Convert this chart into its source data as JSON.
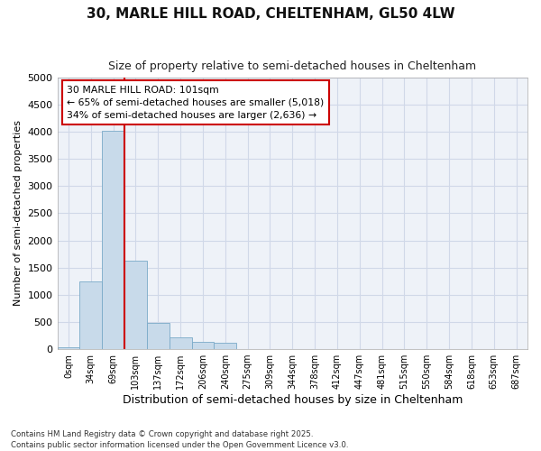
{
  "title_line1": "30, MARLE HILL ROAD, CHELTENHAM, GL50 4LW",
  "title_line2": "Size of property relative to semi-detached houses in Cheltenham",
  "xlabel": "Distribution of semi-detached houses by size in Cheltenham",
  "ylabel": "Number of semi-detached properties",
  "bar_color": "#c8daea",
  "bar_edge_color": "#7aaac8",
  "vline_color": "#cc0000",
  "vline_x_index": 3,
  "annotation_text": "30 MARLE HILL ROAD: 101sqm\n← 65% of semi-detached houses are smaller (5,018)\n34% of semi-detached houses are larger (2,636) →",
  "annotation_box_edgecolor": "#cc0000",
  "categories": [
    "0sqm",
    "34sqm",
    "69sqm",
    "103sqm",
    "137sqm",
    "172sqm",
    "206sqm",
    "240sqm",
    "275sqm",
    "309sqm",
    "344sqm",
    "378sqm",
    "412sqm",
    "447sqm",
    "481sqm",
    "515sqm",
    "550sqm",
    "584sqm",
    "618sqm",
    "653sqm",
    "687sqm"
  ],
  "values": [
    30,
    1250,
    4020,
    1620,
    480,
    210,
    130,
    110,
    0,
    0,
    0,
    0,
    0,
    0,
    0,
    0,
    0,
    0,
    0,
    0,
    0
  ],
  "ylim": [
    0,
    5000
  ],
  "yticks": [
    0,
    500,
    1000,
    1500,
    2000,
    2500,
    3000,
    3500,
    4000,
    4500,
    5000
  ],
  "background_color": "#ffffff",
  "plot_bg_color": "#eef2f8",
  "grid_color": "#d0d8e8",
  "footnote": "Contains HM Land Registry data © Crown copyright and database right 2025.\nContains public sector information licensed under the Open Government Licence v3.0."
}
